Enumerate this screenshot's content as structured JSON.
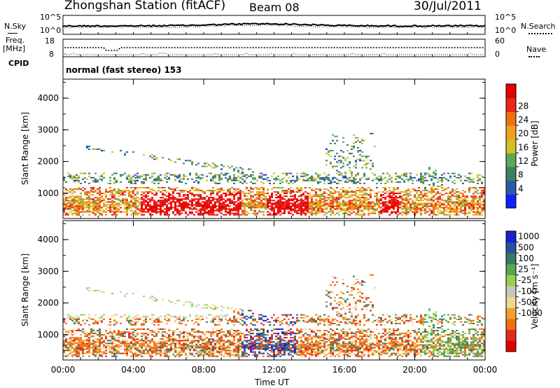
{
  "header": {
    "station": "Zhongshan Station (fitACF)",
    "beam": "Beam 08",
    "date": "30/Jul/2011"
  },
  "top_panels": {
    "nsky_label": "N.Sky",
    "nsky_ticks": [
      "10^5",
      "10^0"
    ],
    "nsearch_label": "N.Search",
    "nsearch_ticks": [
      "10^5",
      "10^0"
    ],
    "freq_label_1": "Freq.",
    "freq_label_2": "[MHz]",
    "freq_ticks": [
      "18",
      "8"
    ],
    "nave_label": "Nave",
    "nave_ticks": [
      "60",
      "0"
    ],
    "cpid_label": "CPID",
    "cpid_text": "normal (fast stereo) 153"
  },
  "chart_data": [
    {
      "type": "heatmap",
      "title": "",
      "ylabel": "Slant Range [km]",
      "xlabel": "Time UT",
      "yticks": [
        "1000",
        "2000",
        "3000",
        "4000"
      ],
      "ylim": [
        200,
        4600
      ],
      "xticks": [
        "00:00",
        "04:00",
        "08:00",
        "12:00",
        "16:00",
        "20:00",
        "00:00"
      ],
      "colorbar_label": "Power [dB]",
      "colorbar_ticks": [
        "4",
        "8",
        "12",
        "16",
        "20",
        "24",
        "28"
      ],
      "colorbar_colors": [
        "#1020ff",
        "#2a5aa8",
        "#3d8060",
        "#5aa858",
        "#d0c020",
        "#f0a020",
        "#f07010",
        "#e82818",
        "#e80000"
      ]
    },
    {
      "type": "heatmap",
      "title": "",
      "ylabel": "Slant Range [km]",
      "xlabel": "Time UT",
      "yticks": [
        "1000",
        "2000",
        "3000",
        "4000"
      ],
      "ylim": [
        200,
        4600
      ],
      "xticks": [
        "00:00",
        "04:00",
        "08:00",
        "12:00",
        "16:00",
        "20:00",
        "00:00"
      ],
      "colorbar_label": "Velocity [m s⁻¹]",
      "colorbar_ticks": [
        "1000",
        "500",
        "100",
        "25",
        "-25",
        "-100",
        "-500",
        "-1000"
      ],
      "colorbar_colors": [
        "#1820d0",
        "#2850a0",
        "#3a7860",
        "#58a850",
        "#9ad04a",
        "#c8c8c0",
        "#f0d890",
        "#f0a030",
        "#f07010",
        "#e82818",
        "#e00000"
      ]
    }
  ]
}
